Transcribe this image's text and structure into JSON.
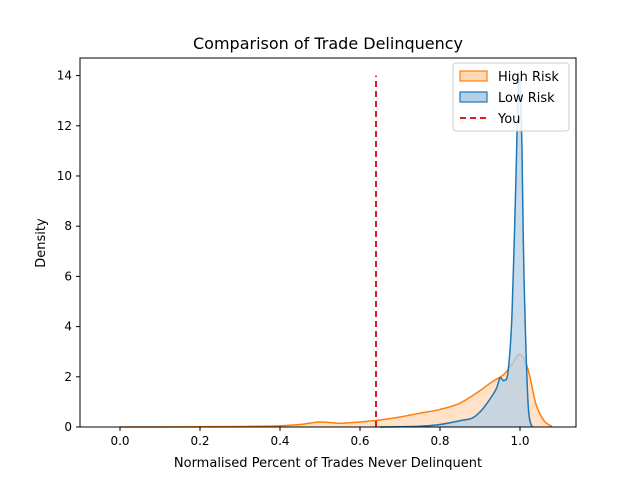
{
  "chart_data": {
    "type": "area",
    "title": "Comparison of Trade Delinquency",
    "xlabel": "Normalised Percent of Trades Never Delinquent",
    "ylabel": "Density",
    "xlim": [
      -0.1,
      1.14
    ],
    "ylim": [
      0,
      14.7
    ],
    "xticks": [
      0.0,
      0.2,
      0.4,
      0.6,
      0.8,
      1.0
    ],
    "xtick_labels": [
      "0.0",
      "0.2",
      "0.4",
      "0.6",
      "0.8",
      "1.0"
    ],
    "yticks": [
      0,
      2,
      4,
      6,
      8,
      10,
      12,
      14
    ],
    "ytick_labels": [
      "0",
      "2",
      "4",
      "6",
      "8",
      "10",
      "12",
      "14"
    ],
    "grid": false,
    "legend_position": "top-right",
    "series": [
      {
        "name": "High Risk",
        "kind": "kde",
        "color": "#ff7f0e",
        "fill": "#ffd8b4",
        "x": [
          0.0,
          0.1,
          0.2,
          0.3,
          0.4,
          0.45,
          0.5,
          0.55,
          0.6,
          0.65,
          0.7,
          0.75,
          0.8,
          0.85,
          0.9,
          0.93,
          0.96,
          0.98,
          1.0,
          1.02,
          1.04,
          1.06,
          1.08
        ],
        "y": [
          0.0,
          0.0,
          0.01,
          0.02,
          0.05,
          0.1,
          0.2,
          0.15,
          0.2,
          0.28,
          0.4,
          0.55,
          0.7,
          0.95,
          1.45,
          1.8,
          2.1,
          2.5,
          2.9,
          2.3,
          0.9,
          0.25,
          0.02
        ]
      },
      {
        "name": "Low Risk",
        "kind": "kde",
        "color": "#1f77b4",
        "fill": "#b5cfe6",
        "x": [
          0.65,
          0.7,
          0.75,
          0.8,
          0.85,
          0.88,
          0.9,
          0.92,
          0.94,
          0.95,
          0.96,
          0.97,
          0.98,
          0.99,
          0.995,
          1.0,
          1.005,
          1.01,
          1.02,
          1.03
        ],
        "y": [
          0.0,
          0.01,
          0.03,
          0.1,
          0.25,
          0.35,
          0.6,
          1.0,
          1.5,
          1.95,
          1.85,
          2.2,
          4.5,
          10.0,
          13.3,
          13.7,
          11.0,
          6.0,
          1.0,
          0.0
        ]
      },
      {
        "name": "You",
        "kind": "vline",
        "color": "#e31a1c",
        "x": 0.64,
        "y_range": [
          0,
          14
        ]
      }
    ]
  }
}
